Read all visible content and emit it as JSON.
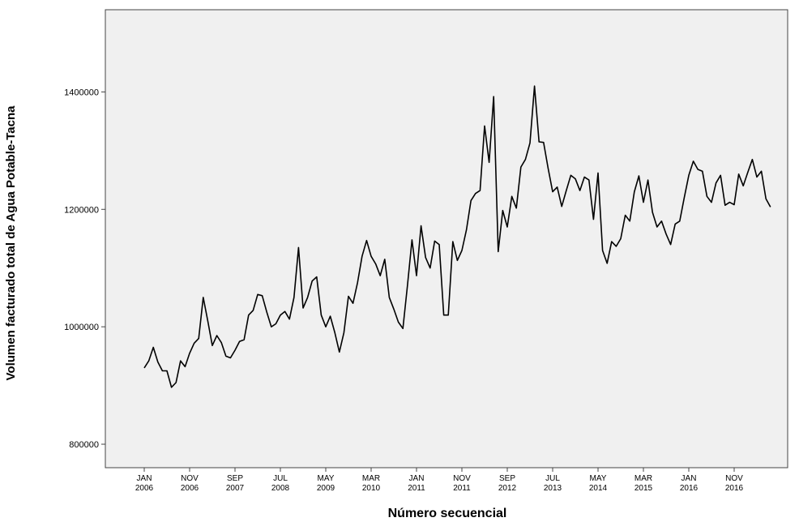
{
  "chart_data": {
    "type": "line",
    "x_label": "Número secuencial",
    "y_label": "Volumen facturado total de Agua Potable-Tacna",
    "categories": [
      "JAN 2006",
      null,
      null,
      null,
      null,
      null,
      null,
      null,
      null,
      null,
      "NOV 2006",
      null,
      null,
      null,
      null,
      null,
      null,
      null,
      null,
      null,
      "SEP 2007",
      null,
      null,
      null,
      null,
      null,
      null,
      null,
      null,
      null,
      "JUL 2008",
      null,
      null,
      null,
      null,
      null,
      null,
      null,
      null,
      null,
      "MAY 2009",
      null,
      null,
      null,
      null,
      null,
      null,
      null,
      null,
      null,
      "MAR 2010",
      null,
      null,
      null,
      null,
      null,
      null,
      null,
      null,
      null,
      "JAN 2011",
      null,
      null,
      null,
      null,
      null,
      null,
      null,
      null,
      null,
      "NOV 2011",
      null,
      null,
      null,
      null,
      null,
      null,
      null,
      null,
      null,
      "SEP 2012",
      null,
      null,
      null,
      null,
      null,
      null,
      null,
      null,
      null,
      "JUL 2013",
      null,
      null,
      null,
      null,
      null,
      null,
      null,
      null,
      null,
      "MAY 2014",
      null,
      null,
      null,
      null,
      null,
      null,
      null,
      null,
      null,
      "MAR 2015",
      null,
      null,
      null,
      null,
      null,
      null,
      null,
      null,
      null,
      "JAN 2016",
      null,
      null,
      null,
      null,
      null,
      null,
      null,
      null,
      null,
      "NOV 2016",
      null,
      null,
      null,
      null,
      null,
      null,
      null,
      null
    ],
    "values": [
      930000,
      942000,
      965000,
      940000,
      925000,
      925000,
      897000,
      905000,
      942000,
      932000,
      955000,
      972000,
      980000,
      1050000,
      1010000,
      968000,
      985000,
      973000,
      950000,
      947000,
      960000,
      975000,
      978000,
      1020000,
      1028000,
      1055000,
      1053000,
      1025000,
      1000000,
      1005000,
      1020000,
      1026000,
      1013000,
      1050000,
      1135000,
      1032000,
      1050000,
      1078000,
      1085000,
      1020000,
      1000000,
      1018000,
      990000,
      957000,
      990000,
      1052000,
      1040000,
      1075000,
      1120000,
      1147000,
      1120000,
      1107000,
      1087000,
      1115000,
      1050000,
      1030000,
      1008000,
      997000,
      1070000,
      1148000,
      1087000,
      1172000,
      1118000,
      1100000,
      1146000,
      1140000,
      1020000,
      1020000,
      1145000,
      1113000,
      1130000,
      1165000,
      1215000,
      1227000,
      1232000,
      1342000,
      1280000,
      1392000,
      1128000,
      1198000,
      1170000,
      1222000,
      1202000,
      1272000,
      1285000,
      1313000,
      1410000,
      1315000,
      1314000,
      1270000,
      1230000,
      1238000,
      1205000,
      1232000,
      1258000,
      1252000,
      1232000,
      1255000,
      1250000,
      1183000,
      1262000,
      1130000,
      1108000,
      1145000,
      1137000,
      1150000,
      1190000,
      1180000,
      1230000,
      1257000,
      1212000,
      1250000,
      1195000,
      1170000,
      1180000,
      1158000,
      1140000,
      1175000,
      1180000,
      1220000,
      1258000,
      1282000,
      1268000,
      1265000,
      1222000,
      1212000,
      1245000,
      1258000,
      1207000,
      1212000,
      1208000,
      1260000,
      1240000,
      1263000,
      1285000,
      1255000,
      1265000,
      1218000,
      1204000
    ],
    "color": "#000000",
    "ylim": [
      760000,
      1540000
    ],
    "yticks": [
      800000,
      1000000,
      1200000,
      1400000
    ],
    "grid": false
  }
}
